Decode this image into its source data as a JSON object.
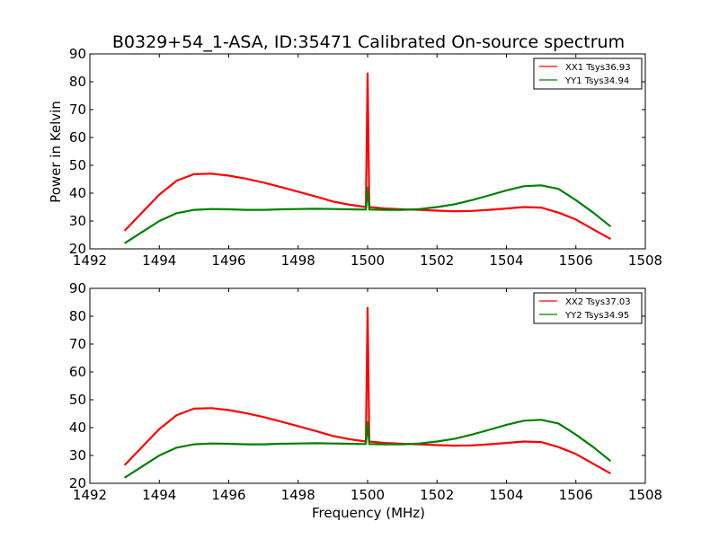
{
  "chart_data": [
    {
      "type": "line",
      "title": "B0329+54_1-ASA, ID:35471 Calibrated On-source spectrum",
      "xlabel": "",
      "ylabel": "Power in Kelvin",
      "xlim": [
        1492,
        1508
      ],
      "ylim": [
        20,
        90
      ],
      "xticks": [
        1492,
        1494,
        1496,
        1498,
        1500,
        1502,
        1504,
        1506,
        1508
      ],
      "yticks": [
        20,
        30,
        40,
        50,
        60,
        70,
        80,
        90
      ],
      "grid": false,
      "legend_position": "top-right",
      "series": [
        {
          "name": "XX1 Tsys36.93",
          "color": "#ff0000",
          "x": [
            1493.0,
            1493.5,
            1494.0,
            1494.5,
            1495.0,
            1495.5,
            1496.0,
            1496.5,
            1497.0,
            1497.5,
            1498.0,
            1498.5,
            1499.0,
            1499.5,
            1499.95,
            1500.0,
            1500.05,
            1500.5,
            1501.0,
            1501.5,
            1502.0,
            1502.5,
            1503.0,
            1503.5,
            1504.0,
            1504.5,
            1505.0,
            1505.5,
            1506.0,
            1506.5,
            1507.0
          ],
          "y": [
            26.5,
            33.0,
            39.5,
            44.5,
            46.8,
            47.0,
            46.3,
            45.2,
            43.8,
            42.2,
            40.5,
            38.8,
            37.0,
            35.8,
            35.0,
            83.0,
            35.0,
            34.5,
            34.2,
            34.0,
            33.7,
            33.5,
            33.6,
            34.0,
            34.5,
            35.0,
            34.8,
            33.0,
            30.5,
            27.0,
            23.5
          ]
        },
        {
          "name": "YY1 Tsys34.94",
          "color": "#008000",
          "x": [
            1493.0,
            1493.5,
            1494.0,
            1494.5,
            1495.0,
            1495.5,
            1496.0,
            1496.5,
            1497.0,
            1497.5,
            1498.0,
            1498.5,
            1499.0,
            1499.5,
            1499.95,
            1500.0,
            1500.05,
            1500.5,
            1501.0,
            1501.5,
            1502.0,
            1502.5,
            1503.0,
            1503.5,
            1504.0,
            1504.5,
            1505.0,
            1505.5,
            1506.0,
            1506.5,
            1507.0
          ],
          "y": [
            22.0,
            26.0,
            30.0,
            32.8,
            34.0,
            34.3,
            34.2,
            34.0,
            34.0,
            34.2,
            34.3,
            34.4,
            34.3,
            34.2,
            34.1,
            42.0,
            34.1,
            34.0,
            34.0,
            34.3,
            35.0,
            36.0,
            37.5,
            39.2,
            41.0,
            42.5,
            42.8,
            41.5,
            37.5,
            33.0,
            28.0
          ]
        }
      ],
      "spike_note_hidden": ""
    },
    {
      "type": "line",
      "title": "",
      "xlabel": "Frequency (MHz)",
      "ylabel": "",
      "xlim": [
        1492,
        1508
      ],
      "ylim": [
        20,
        90
      ],
      "xticks": [
        1492,
        1494,
        1496,
        1498,
        1500,
        1502,
        1504,
        1506,
        1508
      ],
      "yticks": [
        20,
        30,
        40,
        50,
        60,
        70,
        80,
        90
      ],
      "grid": false,
      "legend_position": "top-right",
      "series": [
        {
          "name": "XX2 Tsys37.03",
          "color": "#ff0000",
          "x": [
            1493.0,
            1493.5,
            1494.0,
            1494.5,
            1495.0,
            1495.5,
            1496.0,
            1496.5,
            1497.0,
            1497.5,
            1498.0,
            1498.5,
            1499.0,
            1499.5,
            1499.95,
            1500.0,
            1500.05,
            1500.5,
            1501.0,
            1501.5,
            1502.0,
            1502.5,
            1503.0,
            1503.5,
            1504.0,
            1504.5,
            1505.0,
            1505.5,
            1506.0,
            1506.5,
            1507.0
          ],
          "y": [
            26.5,
            33.0,
            39.5,
            44.5,
            46.8,
            47.0,
            46.3,
            45.2,
            43.8,
            42.2,
            40.5,
            38.8,
            37.0,
            35.8,
            35.0,
            83.0,
            35.0,
            34.5,
            34.2,
            34.0,
            33.7,
            33.5,
            33.6,
            34.0,
            34.5,
            35.0,
            34.8,
            33.0,
            30.5,
            27.0,
            23.5
          ]
        },
        {
          "name": "YY2 Tsys34.95",
          "color": "#008000",
          "x": [
            1493.0,
            1493.5,
            1494.0,
            1494.5,
            1495.0,
            1495.5,
            1496.0,
            1496.5,
            1497.0,
            1497.5,
            1498.0,
            1498.5,
            1499.0,
            1499.5,
            1499.95,
            1500.0,
            1500.05,
            1500.5,
            1501.0,
            1501.5,
            1502.0,
            1502.5,
            1503.0,
            1503.5,
            1504.0,
            1504.5,
            1505.0,
            1505.5,
            1506.0,
            1506.5,
            1507.0
          ],
          "y": [
            22.0,
            26.0,
            30.0,
            32.8,
            34.0,
            34.3,
            34.2,
            34.0,
            34.0,
            34.2,
            34.3,
            34.4,
            34.3,
            34.2,
            34.1,
            42.0,
            34.1,
            34.0,
            34.0,
            34.3,
            35.0,
            36.0,
            37.5,
            39.2,
            41.0,
            42.5,
            42.8,
            41.5,
            37.5,
            33.0,
            28.0
          ]
        }
      ]
    }
  ]
}
